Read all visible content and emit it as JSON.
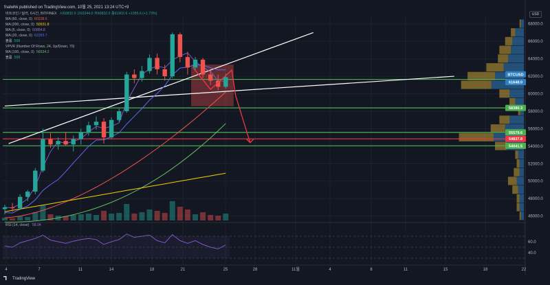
{
  "header": "fnalwhk published on TradingView.com, 10월 25, 2021 13:24 UTC+9",
  "symbol_line": {
    "name": "비트코인 / 달러, 6시간, BITFINEX",
    "ohlc": "시60832.0  고62244.0  저60832.0  종61902.6  +1055.6 (+1.73%)"
  },
  "indicators": [
    {
      "name": "MA (60, close, 0)",
      "value": "60238.6",
      "color": "#ef5350"
    },
    {
      "name": "MA (200, close, 0)",
      "value": "50931.8",
      "color": "#f0d400"
    },
    {
      "name": "MA (5, close, 0)",
      "value": "60854.8",
      "color": "#7e57c2"
    },
    {
      "name": "MA (20, close, 0)",
      "value": "62283.7",
      "color": "#5b6cf0"
    },
    {
      "name": "볼륨",
      "value": "598",
      "color": "#26a69a"
    },
    {
      "name": "VPVR (Number Of Rows, 24, Up/Down, 70)",
      "value": "",
      "color": "#b2b5be"
    },
    {
      "name": "MA (100, close, 0)",
      "value": "56534.2",
      "color": "#66bb6a"
    },
    {
      "name": "볼륨",
      "value": "598",
      "color": "#26a69a"
    }
  ],
  "rsi_legend": {
    "name": "RSI (14, close)",
    "value": "58.04"
  },
  "currency": "USD",
  "logo": "TradingView",
  "colors": {
    "background": "#131722",
    "up": "#26a69a",
    "down": "#ef5350",
    "level_green": "#4caf50",
    "level_red": "#f23645",
    "ma60": "#ef5350",
    "ma200": "#f0d400",
    "ma5": "#7e57c2",
    "ma20": "#5b6cf0",
    "ma100": "#66bb6a",
    "vp_up": "#2f7fc1",
    "vp_down": "#c8a033",
    "rsi": "#7e57c2"
  },
  "chart_data": {
    "type": "candlestick",
    "y_axis": {
      "ticks": [
        68000,
        66000,
        64000,
        62000,
        60000,
        58000,
        56000,
        54000,
        52000,
        50000,
        48000,
        46000
      ],
      "range": [
        45500,
        69000
      ]
    },
    "x_axis": {
      "ticks": [
        "4",
        "7",
        "11",
        "14",
        "18",
        "21",
        "25",
        "28",
        "11월",
        "4",
        "8",
        "11",
        "15",
        "18",
        "22"
      ]
    },
    "price_labels": [
      {
        "text": "BTCUSD",
        "value": 61902.6,
        "color": "#2f7fc1"
      },
      {
        "text": "61648.0",
        "value": 61648.0,
        "color": "#2f7fc1"
      },
      {
        "text": "58380.3",
        "value": 58380.3,
        "color": "#4caf50"
      },
      {
        "text": "55579.6",
        "value": 55579.6,
        "color": "#4caf50"
      },
      {
        "text": "54837.8",
        "value": 54837.8,
        "color": "#f23645"
      },
      {
        "text": "54041.5",
        "value": 54041.5,
        "color": "#4caf50"
      }
    ],
    "levels": [
      {
        "value": 61648.0,
        "color": "#4caf50"
      },
      {
        "value": 58380.3,
        "color": "#4caf50"
      },
      {
        "value": 55579.6,
        "color": "#4caf50"
      },
      {
        "value": 54837.8,
        "color": "#f23645"
      },
      {
        "value": 54041.5,
        "color": "#4caf50"
      }
    ],
    "trendlines": [
      {
        "from": [
          0.5,
          54300
        ],
        "to": [
          40.5,
          67000
        ],
        "color": "#ffffff"
      },
      {
        "from": [
          0,
          58600
        ],
        "to": [
          59,
          62000
        ],
        "color": "#ffffff"
      }
    ],
    "zone": {
      "x": [
        24.5,
        30
      ],
      "y": [
        58600,
        63300
      ]
    },
    "projection": {
      "points": [
        [
          24.7,
          63000
        ],
        [
          27.0,
          60500
        ],
        [
          29.8,
          62700
        ],
        [
          30.3,
          59800
        ],
        [
          32.2,
          54400
        ]
      ],
      "color": "#f23645"
    },
    "candles": [
      {
        "o": 46800,
        "h": 47300,
        "l": 46200,
        "c": 47000
      },
      {
        "o": 47000,
        "h": 47500,
        "l": 46500,
        "c": 46900
      },
      {
        "o": 46900,
        "h": 48500,
        "l": 46700,
        "c": 48200
      },
      {
        "o": 48200,
        "h": 49000,
        "l": 47700,
        "c": 48800
      },
      {
        "o": 48800,
        "h": 51500,
        "l": 48500,
        "c": 51200
      },
      {
        "o": 51200,
        "h": 56000,
        "l": 51000,
        "c": 54800
      },
      {
        "o": 54800,
        "h": 55500,
        "l": 53800,
        "c": 54200
      },
      {
        "o": 54200,
        "h": 55000,
        "l": 53600,
        "c": 54600
      },
      {
        "o": 54600,
        "h": 55600,
        "l": 54000,
        "c": 54200
      },
      {
        "o": 54200,
        "h": 55200,
        "l": 53400,
        "c": 54800
      },
      {
        "o": 54800,
        "h": 56000,
        "l": 54200,
        "c": 55600
      },
      {
        "o": 55600,
        "h": 56800,
        "l": 55200,
        "c": 56400
      },
      {
        "o": 56400,
        "h": 57400,
        "l": 55900,
        "c": 56800
      },
      {
        "o": 56800,
        "h": 57200,
        "l": 54300,
        "c": 55000
      },
      {
        "o": 55000,
        "h": 57300,
        "l": 54800,
        "c": 57000
      },
      {
        "o": 57000,
        "h": 58300,
        "l": 56800,
        "c": 58000
      },
      {
        "o": 58000,
        "h": 62500,
        "l": 57800,
        "c": 62200
      },
      {
        "o": 62200,
        "h": 62800,
        "l": 61200,
        "c": 61800
      },
      {
        "o": 61800,
        "h": 63200,
        "l": 61400,
        "c": 62600
      },
      {
        "o": 62600,
        "h": 64500,
        "l": 62300,
        "c": 64100
      },
      {
        "o": 64100,
        "h": 64600,
        "l": 62200,
        "c": 62800
      },
      {
        "o": 62800,
        "h": 63300,
        "l": 61500,
        "c": 62000
      },
      {
        "o": 62000,
        "h": 67000,
        "l": 61800,
        "c": 66800
      },
      {
        "o": 66800,
        "h": 67000,
        "l": 63600,
        "c": 64200
      },
      {
        "o": 64200,
        "h": 64800,
        "l": 62200,
        "c": 63000
      },
      {
        "o": 63000,
        "h": 64200,
        "l": 62700,
        "c": 63900
      },
      {
        "o": 63900,
        "h": 64100,
        "l": 61800,
        "c": 62200
      },
      {
        "o": 62200,
        "h": 62700,
        "l": 61000,
        "c": 61500
      },
      {
        "o": 61500,
        "h": 62200,
        "l": 60400,
        "c": 60800
      },
      {
        "o": 60800,
        "h": 62300,
        "l": 60600,
        "c": 61900
      }
    ],
    "volume_profile": [
      {
        "price": 68000,
        "up": 4,
        "down": 2
      },
      {
        "price": 67000,
        "up": 12,
        "down": 6
      },
      {
        "price": 66000,
        "up": 16,
        "down": 10
      },
      {
        "price": 65000,
        "up": 18,
        "down": 16
      },
      {
        "price": 64000,
        "up": 22,
        "down": 14
      },
      {
        "price": 63000,
        "up": 28,
        "down": 24
      },
      {
        "price": 62000,
        "up": 40,
        "down": 38
      },
      {
        "price": 61000,
        "up": 45,
        "down": 42
      },
      {
        "price": 60000,
        "up": 20,
        "down": 14
      },
      {
        "price": 59000,
        "up": 12,
        "down": 8
      },
      {
        "price": 58000,
        "up": 5,
        "down": 3
      },
      {
        "price": 57000,
        "up": 20,
        "down": 14
      },
      {
        "price": 56000,
        "up": 26,
        "down": 20
      },
      {
        "price": 55000,
        "up": 42,
        "down": 48
      },
      {
        "price": 54000,
        "up": 24,
        "down": 16
      },
      {
        "price": 53000,
        "up": 8,
        "down": 4
      },
      {
        "price": 52000,
        "up": 6,
        "down": 4
      },
      {
        "price": 51000,
        "up": 6,
        "down": 8
      },
      {
        "price": 50000,
        "up": 10,
        "down": 12
      },
      {
        "price": 49000,
        "up": 8,
        "down": 8
      },
      {
        "price": 48000,
        "up": 6,
        "down": 4
      },
      {
        "price": 47000,
        "up": 6,
        "down": 4
      },
      {
        "price": 46000,
        "up": 4,
        "down": 2
      }
    ],
    "rsi": {
      "levels": [
        70,
        50,
        30
      ],
      "ticks": [
        60.0,
        40.0
      ],
      "range": [
        20,
        85
      ]
    }
  }
}
